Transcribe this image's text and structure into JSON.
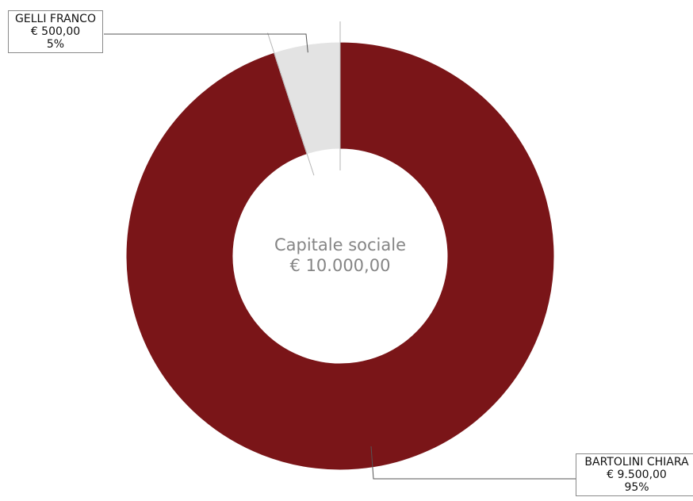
{
  "chart_data": {
    "type": "pie",
    "style": "donut",
    "center_label": {
      "title": "Capitale sociale",
      "total": "€ 10.000,00"
    },
    "series": [
      {
        "name": "Capitale sociale",
        "slices": [
          {
            "label": "BARTOLINI CHIARA",
            "value": 9500,
            "value_text": "€ 9.500,00",
            "percent": 95,
            "percent_text": "95%",
            "color": "#7a1518"
          },
          {
            "label": "GELLI FRANCO",
            "value": 500,
            "value_text": "€ 500,00",
            "percent": 5,
            "percent_text": "5%",
            "color": "#e3e3e3"
          }
        ]
      }
    ],
    "legend": "none"
  }
}
